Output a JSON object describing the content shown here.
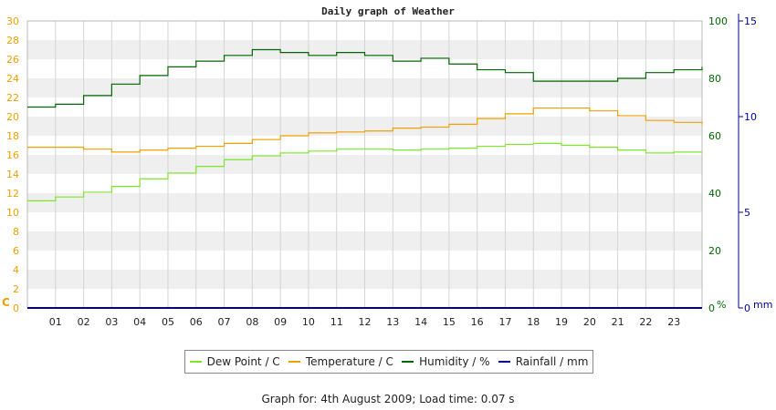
{
  "page": {
    "footer": "Graph for: 4th August 2009; Load time: 0.07 s"
  },
  "chart_data": {
    "type": "line",
    "title": "Daily graph of Weather",
    "x_ticks": [
      "01",
      "02",
      "03",
      "04",
      "05",
      "06",
      "07",
      "08",
      "09",
      "10",
      "11",
      "12",
      "13",
      "14",
      "15",
      "16",
      "17",
      "18",
      "19",
      "20",
      "21",
      "22",
      "23"
    ],
    "x_range": [
      0,
      24
    ],
    "axes": {
      "left": {
        "unit_label": "C",
        "range": [
          0,
          30
        ],
        "ticks": [
          0,
          2,
          4,
          6,
          8,
          10,
          12,
          14,
          16,
          18,
          20,
          22,
          24,
          26,
          28,
          30
        ],
        "color": "#f0a000"
      },
      "right1": {
        "unit_label": "%",
        "range": [
          0,
          100
        ],
        "ticks": [
          0,
          20,
          40,
          60,
          80,
          100
        ],
        "color": "#006600"
      },
      "right2": {
        "unit_label": "mm",
        "range": [
          0,
          15
        ],
        "ticks": [
          0,
          5,
          10,
          15
        ],
        "color": "#000099"
      }
    },
    "grid": true,
    "legend_position": "bottom",
    "series": [
      {
        "name": "Dew Point / C",
        "axis": "left",
        "color": "#7ee52a",
        "points": [
          [
            0,
            11.2
          ],
          [
            1,
            11.6
          ],
          [
            2,
            12.1
          ],
          [
            3,
            12.7
          ],
          [
            4,
            13.5
          ],
          [
            5,
            14.1
          ],
          [
            6,
            14.8
          ],
          [
            7,
            15.5
          ],
          [
            8,
            15.9
          ],
          [
            9,
            16.2
          ],
          [
            10,
            16.4
          ],
          [
            11,
            16.6
          ],
          [
            12,
            16.6
          ],
          [
            13,
            16.5
          ],
          [
            14,
            16.6
          ],
          [
            15,
            16.7
          ],
          [
            16,
            16.9
          ],
          [
            17,
            17.1
          ],
          [
            18,
            17.2
          ],
          [
            19,
            17.0
          ],
          [
            20,
            16.8
          ],
          [
            21,
            16.5
          ],
          [
            22,
            16.2
          ],
          [
            23,
            16.3
          ],
          [
            24,
            16.3
          ]
        ]
      },
      {
        "name": "Temperature / C",
        "axis": "left",
        "color": "#f0a000",
        "points": [
          [
            0,
            16.8
          ],
          [
            1,
            16.8
          ],
          [
            2,
            16.6
          ],
          [
            3,
            16.3
          ],
          [
            4,
            16.5
          ],
          [
            5,
            16.7
          ],
          [
            6,
            16.9
          ],
          [
            7,
            17.2
          ],
          [
            8,
            17.6
          ],
          [
            9,
            18.0
          ],
          [
            10,
            18.3
          ],
          [
            11,
            18.4
          ],
          [
            12,
            18.5
          ],
          [
            13,
            18.8
          ],
          [
            14,
            18.9
          ],
          [
            15,
            19.2
          ],
          [
            16,
            19.8
          ],
          [
            17,
            20.3
          ],
          [
            18,
            20.9
          ],
          [
            19,
            20.9
          ],
          [
            20,
            20.6
          ],
          [
            21,
            20.1
          ],
          [
            22,
            19.6
          ],
          [
            23,
            19.4
          ],
          [
            24,
            19.2
          ]
        ]
      },
      {
        "name": "Humidity / %",
        "axis": "right1",
        "color": "#006600",
        "points": [
          [
            0,
            70
          ],
          [
            1,
            71
          ],
          [
            2,
            74
          ],
          [
            3,
            78
          ],
          [
            4,
            81
          ],
          [
            5,
            84
          ],
          [
            6,
            86
          ],
          [
            7,
            88
          ],
          [
            8,
            90
          ],
          [
            9,
            89
          ],
          [
            10,
            88
          ],
          [
            11,
            89
          ],
          [
            12,
            88
          ],
          [
            13,
            86
          ],
          [
            14,
            87
          ],
          [
            15,
            85
          ],
          [
            16,
            83
          ],
          [
            17,
            82
          ],
          [
            18,
            79
          ],
          [
            19,
            79
          ],
          [
            20,
            79
          ],
          [
            21,
            80
          ],
          [
            22,
            82
          ],
          [
            23,
            83
          ],
          [
            24,
            84
          ]
        ]
      },
      {
        "name": "Rainfall / mm",
        "axis": "right2",
        "color": "#000099",
        "points": [
          [
            0,
            0
          ],
          [
            24,
            0
          ]
        ]
      }
    ]
  }
}
